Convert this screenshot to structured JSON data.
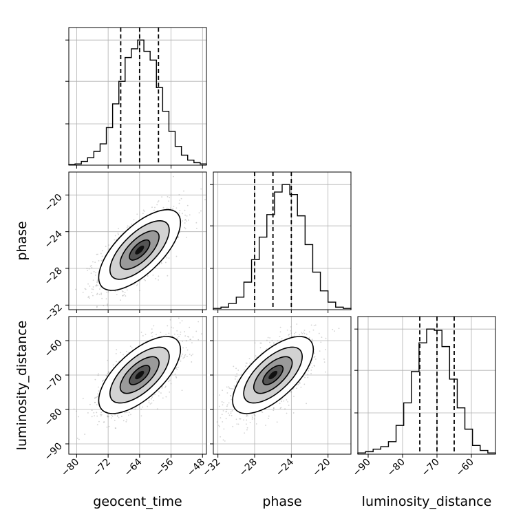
{
  "chart_data": {
    "type": "corner",
    "variables": [
      {
        "name": "geocent_time",
        "range": [
          -82,
          -47
        ],
        "ticks": [
          -80,
          -72,
          -64,
          -56,
          -48
        ],
        "quantiles": [
          -68.8,
          -64.0,
          -59.2
        ],
        "hist_bins": [
          0.005,
          0.01,
          0.03,
          0.06,
          0.11,
          0.17,
          0.3,
          0.49,
          0.67,
          0.86,
          0.93,
          1.0,
          0.91,
          0.84,
          0.62,
          0.43,
          0.27,
          0.15,
          0.08,
          0.04,
          0.02,
          0.01
        ]
      },
      {
        "name": "phase",
        "range": [
          -32.5,
          -17.5
        ],
        "ticks": [
          -32,
          -28,
          -24,
          -20
        ],
        "quantiles": [
          -28.0,
          -26.0,
          -24.0
        ],
        "hist_bins": [
          0.01,
          0.02,
          0.05,
          0.1,
          0.22,
          0.4,
          0.58,
          0.76,
          0.94,
          1.0,
          0.92,
          0.75,
          0.52,
          0.3,
          0.15,
          0.06,
          0.02,
          0.01
        ]
      },
      {
        "name": "luminosity_distance",
        "range": [
          -93,
          -53
        ],
        "ticks": [
          -90,
          -80,
          -70,
          -60
        ],
        "quantiles": [
          -75.0,
          -70.0,
          -65.0
        ],
        "hist_bins": [
          0.01,
          0.02,
          0.04,
          0.06,
          0.1,
          0.23,
          0.41,
          0.66,
          0.89,
          1.0,
          0.99,
          0.86,
          0.6,
          0.37,
          0.2,
          0.07,
          0.03,
          0.01
        ]
      }
    ],
    "pairs": [
      {
        "x": "geocent_time",
        "y": "phase",
        "center": [
          -64.0,
          -26.0
        ],
        "sigma": [
          5.2,
          2.2
        ],
        "correlation": 0.68
      },
      {
        "x": "geocent_time",
        "y": "luminosity_distance",
        "center": [
          -64.0,
          -70.0
        ],
        "sigma": [
          5.2,
          5.6
        ],
        "correlation": 0.66
      },
      {
        "x": "phase",
        "y": "luminosity_distance",
        "center": [
          -26.0,
          -70.0
        ],
        "sigma": [
          2.2,
          5.6
        ],
        "correlation": 0.66
      }
    ],
    "grid": true,
    "colors": {
      "line": "#000000",
      "grid": "#b0b0b0",
      "points": "#7f7f7f",
      "frame": "#000000"
    }
  }
}
